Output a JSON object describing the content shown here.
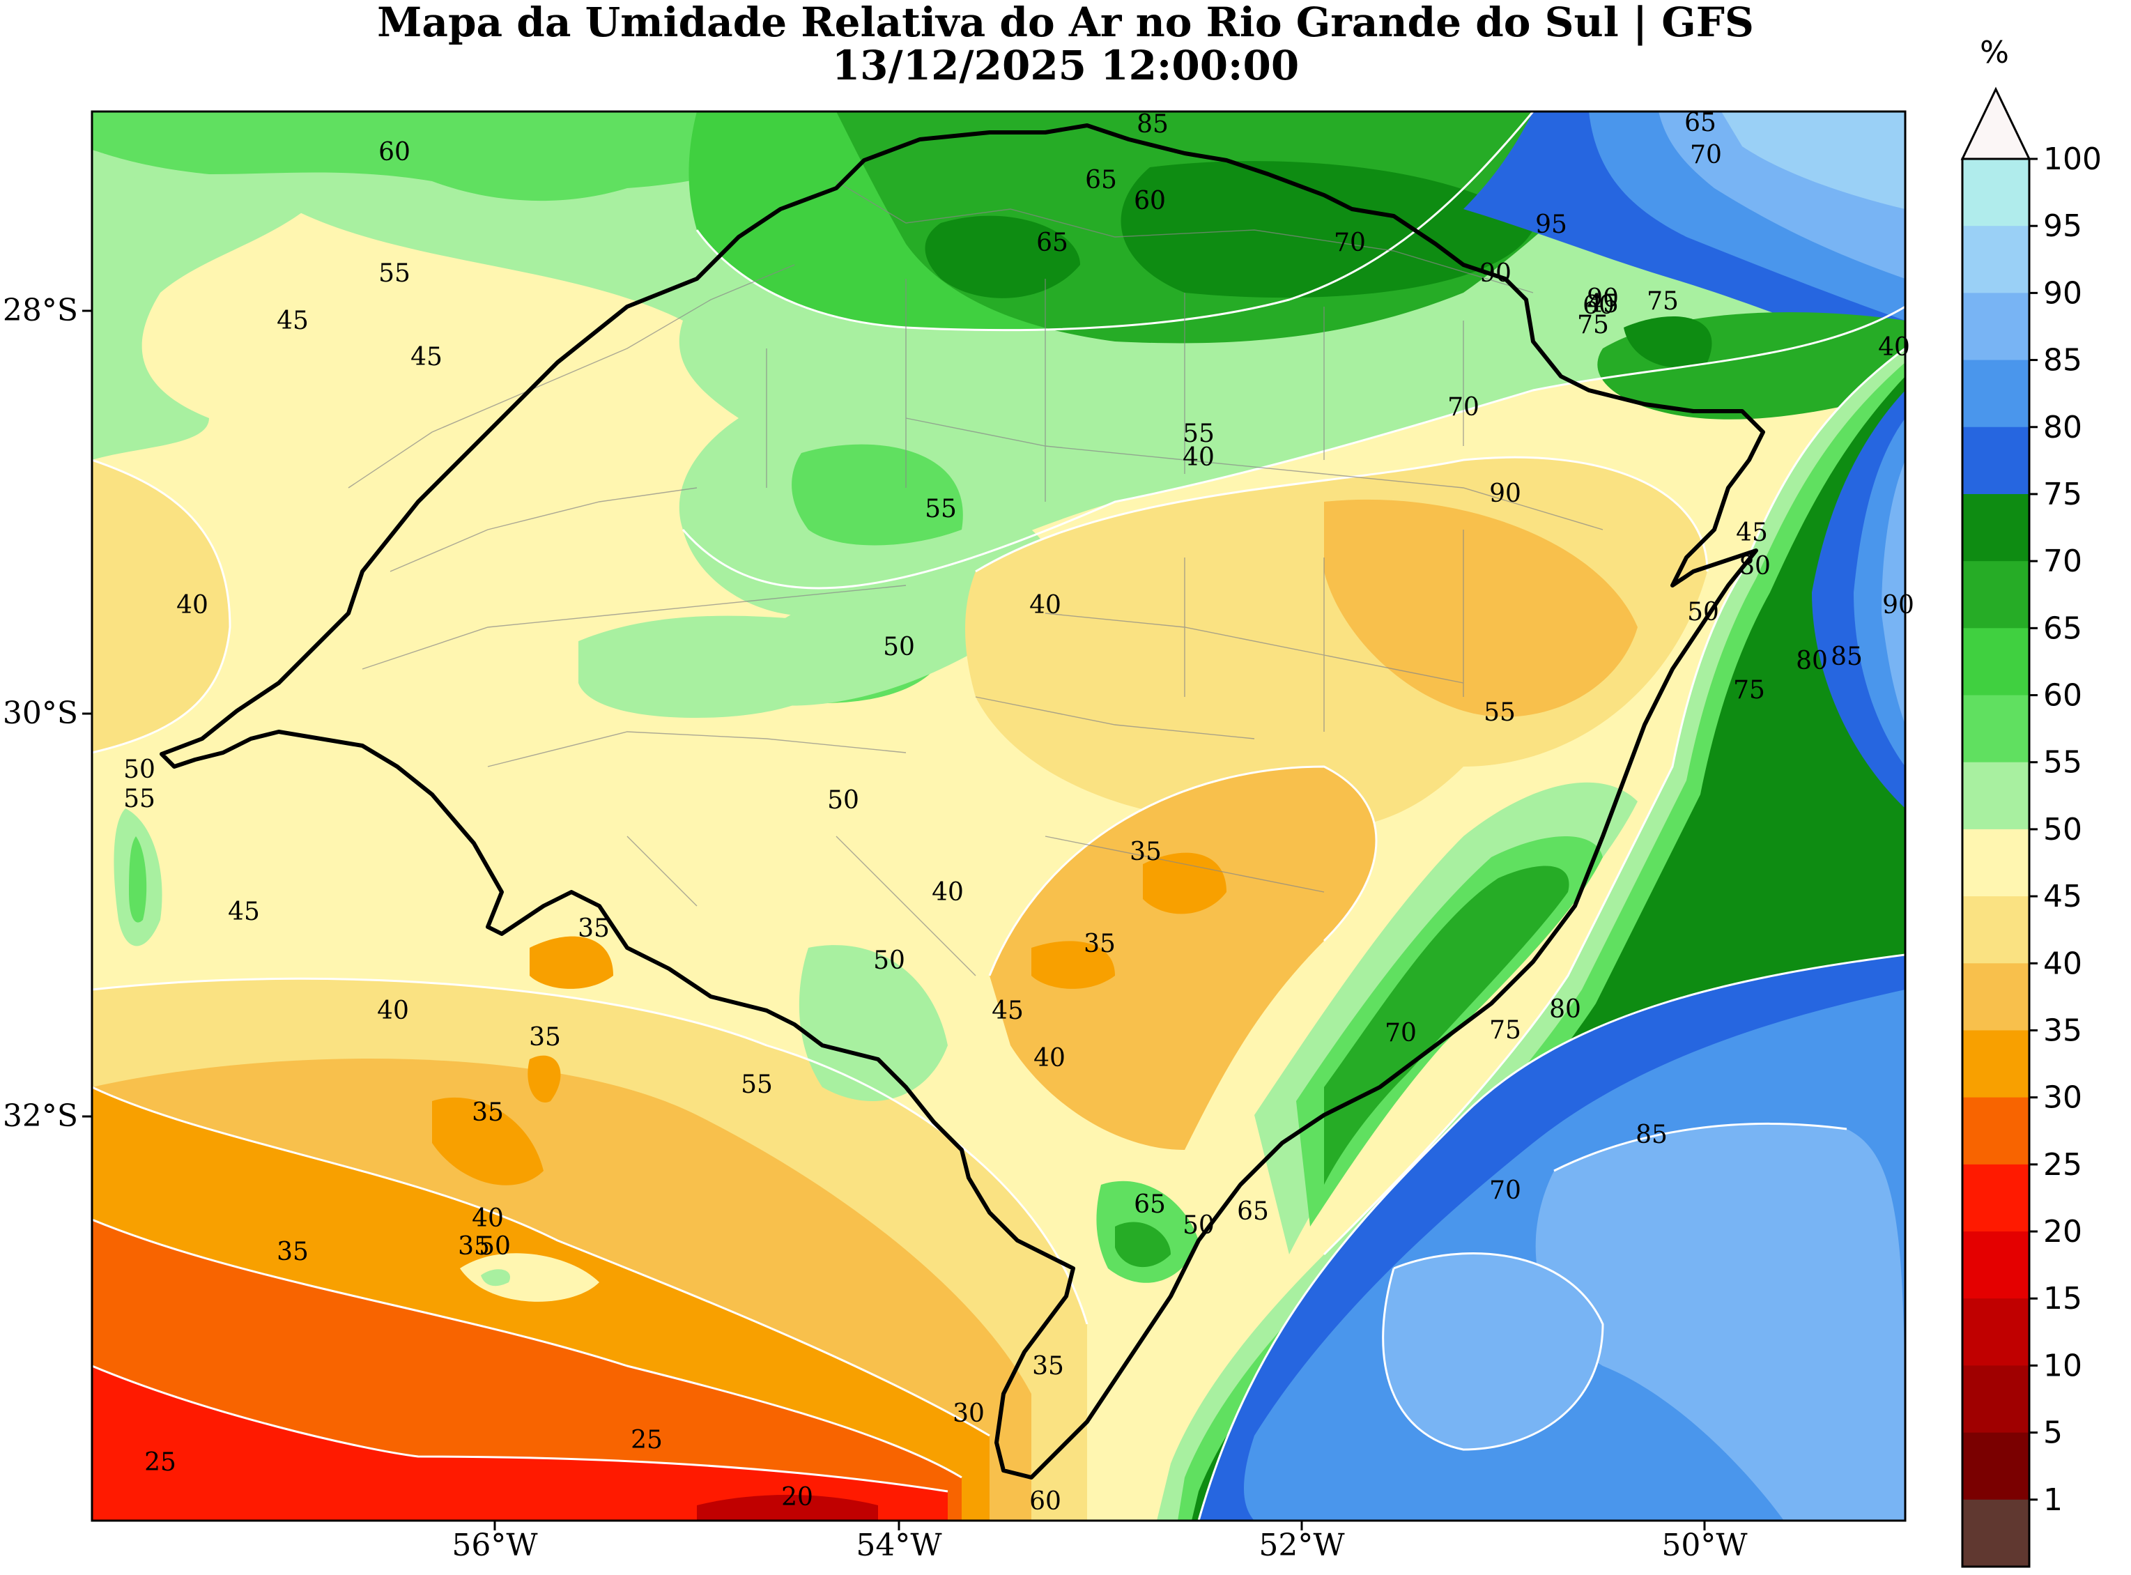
{
  "title": "Mapa da Umidade Relativa do Ar no Rio Grande do Sul | GFS",
  "subtitle": "13/12/2025 12:00:00",
  "colorbar": {
    "unit": "%",
    "ticks": [
      "100",
      "95",
      "90",
      "85",
      "80",
      "75",
      "70",
      "65",
      "60",
      "55",
      "50",
      "45",
      "40",
      "35",
      "30",
      "25",
      "20",
      "15",
      "10",
      "5",
      "1"
    ],
    "colors": [
      "#b0ecec",
      "#9ad0f6",
      "#78b4f4",
      "#4a96ec",
      "#2666e0",
      "#0e8c12",
      "#26ac26",
      "#40d040",
      "#60e060",
      "#a8f0a0",
      "#fff6b0",
      "#fae282",
      "#f8c04c",
      "#f8a000",
      "#f86400",
      "#ff1a00",
      "#e40000",
      "#c00000",
      "#a00000",
      "#7a0000",
      "#603830"
    ]
  },
  "axes": {
    "x_ticks": [
      "56°W",
      "54°W",
      "52°W",
      "50°W"
    ],
    "y_ticks": [
      "28°S",
      "30°S",
      "32°S"
    ]
  },
  "contour_labels": [
    "60",
    "55",
    "45",
    "45",
    "40",
    "50",
    "55",
    "45",
    "40",
    "35",
    "35",
    "35",
    "40",
    "35",
    "50",
    "35",
    "25",
    "25",
    "20",
    "30",
    "35",
    "60",
    "65",
    "50",
    "65",
    "70",
    "70",
    "75",
    "80",
    "85",
    "90",
    "75",
    "80",
    "85",
    "90",
    "50",
    "45",
    "40",
    "55",
    "50",
    "40",
    "35",
    "35",
    "40",
    "40",
    "45",
    "50",
    "55",
    "55",
    "50",
    "40",
    "55",
    "60",
    "65",
    "65",
    "60",
    "70",
    "75",
    "60",
    "75",
    "80",
    "85",
    "90",
    "95",
    "90",
    "65",
    "70",
    "70",
    "45"
  ]
}
